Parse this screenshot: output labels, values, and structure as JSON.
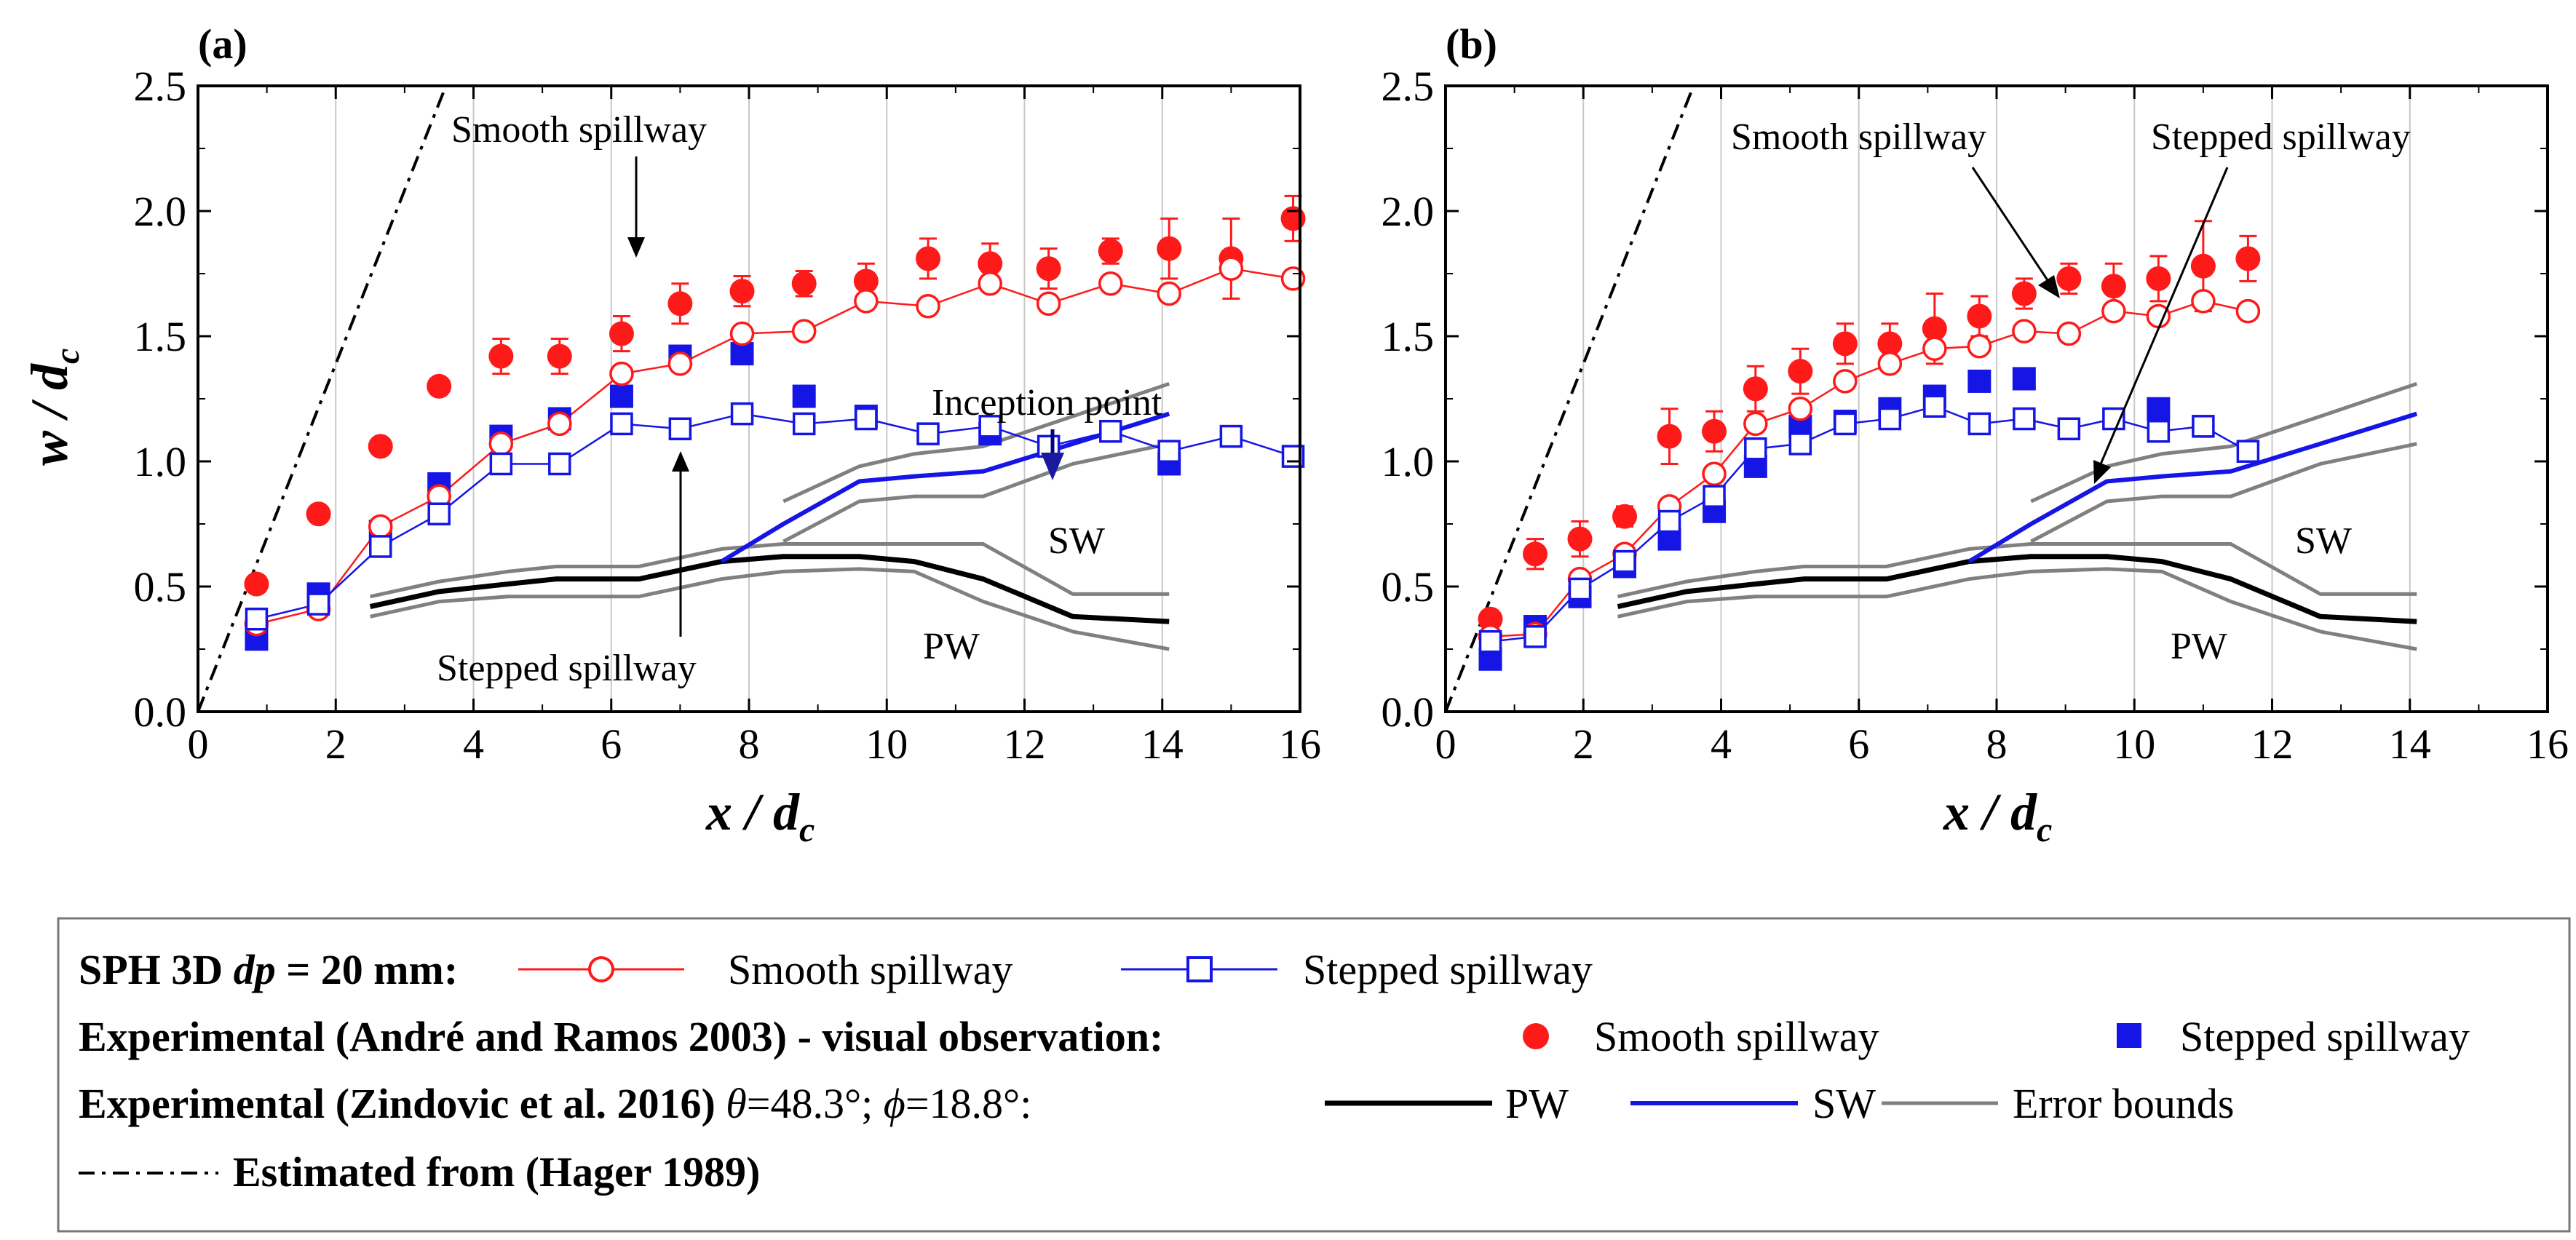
{
  "chart_data": [
    {
      "type": "scatter",
      "panel_label": "(a)",
      "xlabel": "x / d",
      "xlabel_sub": "c",
      "ylabel": "w / d",
      "ylabel_sub": "c",
      "xlim": [
        0,
        16
      ],
      "ylim": [
        0,
        2.5
      ],
      "xticks": [
        "0",
        "2",
        "4",
        "6",
        "8",
        "10",
        "12",
        "14",
        "16"
      ],
      "yticks": [
        "0.0",
        "0.5",
        "1.0",
        "1.5",
        "2.0",
        "2.5"
      ],
      "grid": "vertical",
      "series": [
        {
          "name": "SPH smooth spillway",
          "x": [
            0.85,
            1.75,
            2.65,
            3.5,
            4.4,
            5.25,
            6.15,
            7.0,
            7.9,
            8.8,
            9.7,
            10.6,
            11.5,
            12.35,
            13.25,
            14.1,
            15.0,
            15.9
          ],
          "y": [
            0.35,
            0.41,
            0.74,
            0.86,
            1.07,
            1.15,
            1.35,
            1.39,
            1.51,
            1.52,
            1.64,
            1.62,
            1.71,
            1.63,
            1.71,
            1.67,
            1.77,
            1.73
          ]
        },
        {
          "name": "SPH stepped spillway",
          "x": [
            0.85,
            1.75,
            2.65,
            3.5,
            4.4,
            5.25,
            6.15,
            7.0,
            7.9,
            8.8,
            9.7,
            10.6,
            11.5,
            12.35,
            13.25,
            14.1,
            15.0,
            15.9
          ],
          "y": [
            0.37,
            0.43,
            0.66,
            0.79,
            0.99,
            0.99,
            1.15,
            1.13,
            1.19,
            1.15,
            1.17,
            1.11,
            1.14,
            1.06,
            1.12,
            1.04,
            1.1,
            1.02
          ]
        },
        {
          "name": "Experimental smooth spillway",
          "x": [
            0.85,
            1.75,
            2.65,
            3.5,
            4.4,
            5.25,
            6.15,
            7.0,
            7.9,
            8.8,
            9.7,
            10.6,
            11.5,
            12.35,
            13.25,
            14.1,
            15.0,
            15.9
          ],
          "y": [
            0.51,
            0.79,
            1.06,
            1.3,
            1.42,
            1.42,
            1.51,
            1.63,
            1.68,
            1.71,
            1.72,
            1.81,
            1.79,
            1.77,
            1.84,
            1.85,
            1.81,
            1.97
          ],
          "err": [
            0,
            0,
            0,
            0.03,
            0.07,
            0.07,
            0.07,
            0.08,
            0.06,
            0.05,
            0.07,
            0.08,
            0.08,
            0.08,
            0.05,
            0.12,
            0.16,
            0.09
          ]
        },
        {
          "name": "Experimental stepped spillway",
          "x": [
            0.85,
            1.75,
            2.65,
            3.5,
            4.4,
            5.25,
            6.15,
            7.0,
            7.9,
            8.8,
            9.7,
            11.5,
            14.1
          ],
          "y": [
            0.29,
            0.47,
            0.72,
            0.91,
            1.1,
            1.17,
            1.26,
            1.42,
            1.43,
            1.26,
            1.18,
            1.11,
            0.99
          ]
        },
        {
          "name": "PW",
          "x": [
            2.5,
            3.5,
            4.5,
            5.2,
            6.4,
            7.6,
            8.5,
            9.6,
            10.4,
            11.4,
            12.7,
            14.1
          ],
          "y": [
            0.42,
            0.48,
            0.51,
            0.53,
            0.53,
            0.6,
            0.62,
            0.62,
            0.6,
            0.53,
            0.38,
            0.36
          ]
        },
        {
          "name": "PW upper bound",
          "x": [
            2.5,
            3.5,
            4.5,
            5.2,
            6.4,
            7.6,
            8.5,
            9.6,
            10.4,
            11.4,
            12.7,
            14.1
          ],
          "y": [
            0.46,
            0.52,
            0.56,
            0.58,
            0.58,
            0.65,
            0.67,
            0.67,
            0.67,
            0.67,
            0.47,
            0.47
          ]
        },
        {
          "name": "PW lower bound",
          "x": [
            2.5,
            3.5,
            4.5,
            5.2,
            6.4,
            7.6,
            8.5,
            9.6,
            10.4,
            11.4,
            12.7,
            14.1
          ],
          "y": [
            0.38,
            0.44,
            0.46,
            0.46,
            0.46,
            0.53,
            0.56,
            0.57,
            0.56,
            0.44,
            0.32,
            0.25
          ]
        },
        {
          "name": "SW",
          "x": [
            7.6,
            8.5,
            9.6,
            10.4,
            11.4,
            12.7,
            14.1
          ],
          "y": [
            0.6,
            0.75,
            0.92,
            0.94,
            0.96,
            1.07,
            1.19
          ]
        },
        {
          "name": "SW upper bound",
          "x": [
            8.5,
            9.6,
            10.4,
            11.4,
            12.7,
            14.1
          ],
          "y": [
            0.84,
            0.98,
            1.03,
            1.06,
            1.18,
            1.31
          ]
        },
        {
          "name": "SW lower bound",
          "x": [
            8.5,
            9.6,
            10.4,
            11.4,
            12.7,
            14.1
          ],
          "y": [
            0.68,
            0.84,
            0.86,
            0.86,
            0.99,
            1.07
          ]
        },
        {
          "name": "Estimated from (Hager 1989)",
          "x": [
            0,
            3.6
          ],
          "y": [
            0,
            2.5
          ]
        }
      ],
      "annotations": {
        "smooth": "Smooth spillway",
        "stepped": "Stepped spillway",
        "inception": "Inception point",
        "sw": "SW",
        "pw": "PW"
      }
    },
    {
      "type": "scatter",
      "panel_label": "(b)",
      "xlabel": "x / d",
      "xlabel_sub": "c",
      "xlim": [
        0,
        16
      ],
      "ylim": [
        0,
        2.5
      ],
      "xticks": [
        "0",
        "2",
        "4",
        "6",
        "8",
        "10",
        "12",
        "14",
        "16"
      ],
      "yticks": [
        "0.0",
        "0.5",
        "1.0",
        "1.5",
        "2.0",
        "2.5"
      ],
      "grid": "vertical",
      "series": [
        {
          "name": "SPH smooth spillway",
          "x": [
            0.65,
            1.3,
            1.95,
            2.6,
            3.25,
            3.9,
            4.5,
            5.15,
            5.8,
            6.45,
            7.1,
            7.75,
            8.4,
            9.05,
            9.7,
            10.35,
            11.0,
            11.65
          ],
          "y": [
            0.3,
            0.31,
            0.53,
            0.63,
            0.82,
            0.95,
            1.15,
            1.21,
            1.32,
            1.39,
            1.45,
            1.46,
            1.52,
            1.51,
            1.6,
            1.58,
            1.64,
            1.6
          ]
        },
        {
          "name": "SPH stepped spillway",
          "x": [
            0.65,
            1.3,
            1.95,
            2.6,
            3.25,
            3.9,
            4.5,
            5.15,
            5.8,
            6.45,
            7.1,
            7.75,
            8.4,
            9.05,
            9.7,
            10.35,
            11.0,
            11.65
          ],
          "y": [
            0.28,
            0.3,
            0.49,
            0.6,
            0.76,
            0.86,
            1.05,
            1.07,
            1.15,
            1.17,
            1.22,
            1.15,
            1.17,
            1.13,
            1.17,
            1.12,
            1.14,
            1.04
          ]
        },
        {
          "name": "Experimental smooth spillway",
          "x": [
            0.65,
            1.3,
            1.95,
            2.6,
            3.25,
            3.9,
            4.5,
            5.15,
            5.8,
            6.45,
            7.1,
            7.75,
            8.4,
            9.05,
            9.7,
            10.35,
            11.0,
            11.65
          ],
          "y": [
            0.37,
            0.63,
            0.69,
            0.78,
            1.1,
            1.12,
            1.29,
            1.36,
            1.47,
            1.47,
            1.53,
            1.58,
            1.67,
            1.73,
            1.7,
            1.73,
            1.78,
            1.81
          ],
          "err": [
            0.03,
            0.06,
            0.07,
            0.04,
            0.11,
            0.08,
            0.09,
            0.09,
            0.08,
            0.08,
            0.14,
            0.08,
            0.06,
            0.06,
            0.09,
            0.09,
            0.18,
            0.09
          ]
        },
        {
          "name": "Experimental stepped spillway",
          "x": [
            0.65,
            1.3,
            1.95,
            2.6,
            3.25,
            3.9,
            4.5,
            5.15,
            5.8,
            6.45,
            7.1,
            7.75,
            8.4,
            10.35
          ],
          "y": [
            0.21,
            0.34,
            0.46,
            0.58,
            0.69,
            0.8,
            0.98,
            1.14,
            1.16,
            1.21,
            1.26,
            1.32,
            1.33,
            1.21
          ]
        },
        {
          "name": "PW",
          "x": [
            2.5,
            3.5,
            4.5,
            5.2,
            6.4,
            7.6,
            8.5,
            9.6,
            10.4,
            11.4,
            12.7,
            14.1
          ],
          "y": [
            0.42,
            0.48,
            0.51,
            0.53,
            0.53,
            0.6,
            0.62,
            0.62,
            0.6,
            0.53,
            0.38,
            0.36
          ]
        },
        {
          "name": "PW upper bound",
          "x": [
            2.5,
            3.5,
            4.5,
            5.2,
            6.4,
            7.6,
            8.5,
            9.6,
            10.4,
            11.4,
            12.7,
            14.1
          ],
          "y": [
            0.46,
            0.52,
            0.56,
            0.58,
            0.58,
            0.65,
            0.67,
            0.67,
            0.67,
            0.67,
            0.47,
            0.47
          ]
        },
        {
          "name": "PW lower bound",
          "x": [
            2.5,
            3.5,
            4.5,
            5.2,
            6.4,
            7.6,
            8.5,
            9.6,
            10.4,
            11.4,
            12.7,
            14.1
          ],
          "y": [
            0.38,
            0.44,
            0.46,
            0.46,
            0.46,
            0.53,
            0.56,
            0.57,
            0.56,
            0.44,
            0.32,
            0.25
          ]
        },
        {
          "name": "SW",
          "x": [
            7.6,
            8.5,
            9.6,
            10.4,
            11.4,
            12.7,
            14.1
          ],
          "y": [
            0.6,
            0.75,
            0.92,
            0.94,
            0.96,
            1.07,
            1.19
          ]
        },
        {
          "name": "SW upper bound",
          "x": [
            8.5,
            9.6,
            10.4,
            11.4,
            12.7,
            14.1
          ],
          "y": [
            0.84,
            0.98,
            1.03,
            1.06,
            1.18,
            1.31
          ]
        },
        {
          "name": "SW lower bound",
          "x": [
            8.5,
            9.6,
            10.4,
            11.4,
            12.7,
            14.1
          ],
          "y": [
            0.68,
            0.84,
            0.86,
            0.86,
            0.99,
            1.07
          ]
        },
        {
          "name": "Estimated from (Hager 1989)",
          "x": [
            0,
            3.6
          ],
          "y": [
            0,
            2.5
          ]
        }
      ],
      "annotations": {
        "smooth": "Smooth spillway",
        "stepped": "Stepped spillway",
        "sw": "SW",
        "pw": "PW"
      }
    }
  ],
  "legend": {
    "row1_lead": "SPH 3D ",
    "row1_dp": "dp",
    "row1_rest": " = 20 mm:",
    "row1_smooth": "Smooth spillway",
    "row1_stepped": "Stepped spillway",
    "row2_lead": "Experimental (André and Ramos 2003) - visual observation:",
    "row2_smooth": "Smooth spillway",
    "row2_stepped": "Stepped spillway",
    "row3_lead": "Experimental (Zindovic et al. 2016) ",
    "row3_theta": "θ",
    "row3_theta_val": "=48.3°; ",
    "row3_phi": "ϕ",
    "row3_phi_val": "=18.8°:",
    "row3_pw": "PW",
    "row3_sw": "SW",
    "row3_err": "Error bounds",
    "row4": "Estimated from (Hager 1989)"
  },
  "colors": {
    "red": "#ff1a1a",
    "blue": "#1515e6",
    "black": "#000000",
    "gray": "#808080"
  }
}
